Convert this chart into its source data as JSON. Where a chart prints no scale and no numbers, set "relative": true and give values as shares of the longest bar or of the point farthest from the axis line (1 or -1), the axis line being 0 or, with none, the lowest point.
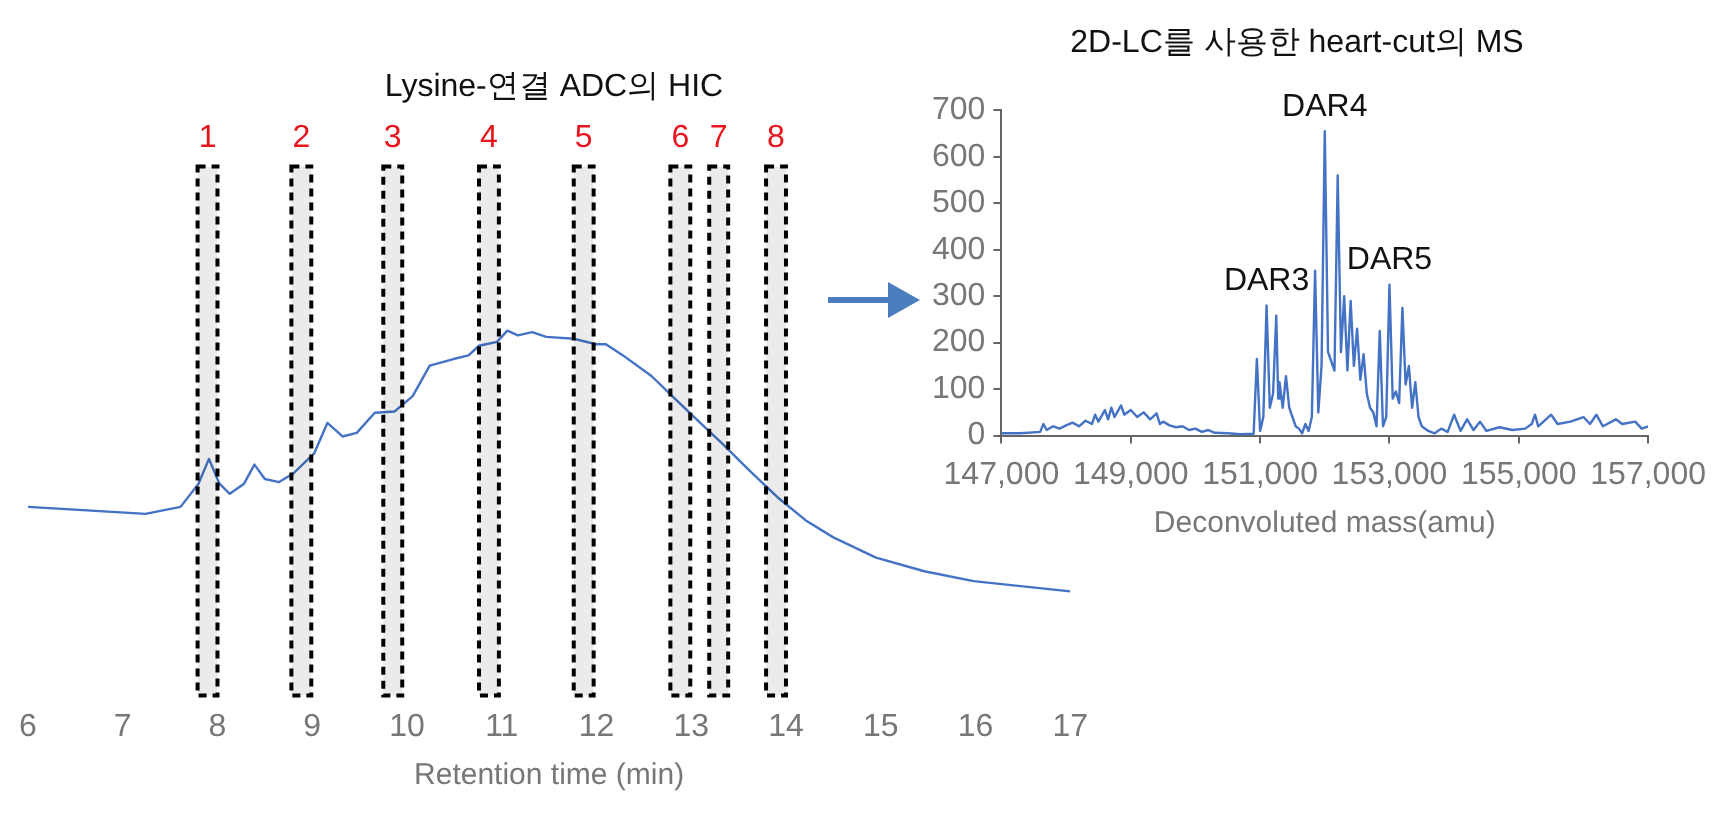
{
  "chart_data": [
    {
      "type": "line",
      "title": "Lysine-연결 ADC의 HIC",
      "xlabel": "Retention time (min)",
      "relative": true,
      "color": "#4472c4",
      "marker": "none",
      "x": [
        6,
        7.24,
        7.61,
        7.8,
        7.91,
        8.02,
        8.13,
        8.28,
        8.39,
        8.5,
        8.65,
        8.8,
        9.02,
        9.16,
        9.32,
        9.47,
        9.66,
        9.87,
        10.06,
        10.24,
        10.5,
        10.65,
        10.76,
        10.95,
        11.06,
        11.17,
        11.32,
        11.47,
        11.76,
        11.99,
        12.1,
        12.28,
        12.58,
        12.8,
        13.02,
        13.32,
        13.61,
        13.91,
        14.21,
        14.5,
        14.95,
        15.46,
        15.98,
        17
      ],
      "values": [
        0.324,
        0.297,
        0.324,
        0.413,
        0.508,
        0.413,
        0.374,
        0.413,
        0.486,
        0.431,
        0.419,
        0.452,
        0.529,
        0.646,
        0.594,
        0.608,
        0.685,
        0.69,
        0.749,
        0.866,
        0.892,
        0.905,
        0.942,
        0.957,
        1,
        0.982,
        0.994,
        0.976,
        0.969,
        0.948,
        0.948,
        0.905,
        0.826,
        0.749,
        0.672,
        0.569,
        0.465,
        0.361,
        0.272,
        0.207,
        0.129,
        0.077,
        0.039,
        0
      ],
      "xlim": [
        6,
        17
      ],
      "xticks": [
        6,
        7,
        8,
        9,
        10,
        11,
        12,
        13,
        14,
        15,
        16,
        17
      ],
      "bands": [
        {
          "axis": "x",
          "from": 7.79,
          "to": 8.0,
          "label": "1",
          "color": "#000000"
        },
        {
          "axis": "x",
          "from": 8.78,
          "to": 8.99,
          "label": "2",
          "color": "#000000"
        },
        {
          "axis": "x",
          "from": 9.75,
          "to": 9.95,
          "label": "3",
          "color": "#000000"
        },
        {
          "axis": "x",
          "from": 10.76,
          "to": 10.97,
          "label": "4",
          "color": "#000000"
        },
        {
          "axis": "x",
          "from": 11.76,
          "to": 11.97,
          "label": "5",
          "color": "#000000"
        },
        {
          "axis": "x",
          "from": 12.78,
          "to": 12.99,
          "label": "6",
          "color": "#000000"
        },
        {
          "axis": "x",
          "from": 13.19,
          "to": 13.39,
          "label": "7",
          "color": "#000000"
        },
        {
          "axis": "x",
          "from": 13.79,
          "to": 14.0,
          "label": "8",
          "color": "#000000"
        }
      ]
    },
    {
      "type": "line",
      "title": "2D-LC를 사용한 heart-cut의 MS",
      "xlabel": "Deconvoluted mass(amu)",
      "color": "#4472c4",
      "marker": "none",
      "x": [
        147000,
        147300,
        147600,
        147650,
        147700,
        147800,
        147900,
        148000,
        148100,
        148200,
        148300,
        148400,
        148450,
        148500,
        148600,
        148650,
        148700,
        148750,
        148850,
        148900,
        149000,
        149100,
        149200,
        149300,
        149400,
        149450,
        149500,
        149600,
        149700,
        149800,
        149900,
        150000,
        150100,
        150200,
        150300,
        150500,
        150700,
        150900,
        150950,
        151000,
        151050,
        151100,
        151150,
        151200,
        151250,
        151280,
        151300,
        151350,
        151400,
        151450,
        151500,
        151550,
        151600,
        151650,
        151700,
        151750,
        151800,
        151850,
        151900,
        151950,
        152000,
        152050,
        152100,
        152150,
        152200,
        152250,
        152300,
        152350,
        152400,
        152450,
        152500,
        152550,
        152600,
        152650,
        152700,
        152750,
        152800,
        152850,
        152900,
        152950,
        153000,
        153050,
        153100,
        153150,
        153200,
        153250,
        153300,
        153350,
        153400,
        153450,
        153500,
        153600,
        153700,
        153800,
        153900,
        154000,
        154100,
        154200,
        154300,
        154400,
        154500,
        154700,
        154900,
        155100,
        155200,
        155250,
        155300,
        155500,
        155600,
        155800,
        156000,
        156100,
        156200,
        156300,
        156500,
        156600,
        156800,
        156900,
        157000
      ],
      "values": [
        5,
        5,
        8,
        25,
        12,
        20,
        15,
        22,
        28,
        20,
        32,
        25,
        45,
        30,
        55,
        35,
        60,
        40,
        65,
        45,
        55,
        40,
        50,
        35,
        48,
        25,
        30,
        22,
        18,
        20,
        12,
        15,
        8,
        12,
        6,
        5,
        3,
        4,
        165,
        10,
        40,
        280,
        60,
        90,
        258,
        80,
        115,
        60,
        128,
        60,
        40,
        20,
        15,
        5,
        25,
        10,
        40,
        355,
        50,
        150,
        655,
        180,
        160,
        140,
        560,
        180,
        300,
        140,
        290,
        150,
        230,
        120,
        175,
        90,
        60,
        50,
        20,
        225,
        20,
        40,
        325,
        80,
        95,
        70,
        275,
        110,
        150,
        60,
        115,
        40,
        20,
        10,
        5,
        15,
        8,
        45,
        10,
        35,
        12,
        30,
        10,
        18,
        12,
        15,
        25,
        45,
        20,
        45,
        25,
        30,
        40,
        25,
        45,
        20,
        35,
        25,
        30,
        15,
        20
      ],
      "xlim": [
        147000,
        157000
      ],
      "xticks": [
        {
          "value": 147000,
          "label": "147,000"
        },
        {
          "value": 149000,
          "label": "149,000"
        },
        {
          "value": 151000,
          "label": "151,000"
        },
        {
          "value": 153000,
          "label": "153,000"
        },
        {
          "value": 155000,
          "label": "155,000"
        },
        {
          "value": 157000,
          "label": "157,000"
        }
      ],
      "ylim": [
        0,
        700
      ],
      "yticks": [
        0,
        100,
        200,
        300,
        400,
        500,
        600,
        700
      ],
      "annotations": [
        {
          "text": "DAR3",
          "x": 151100,
          "y": 280
        },
        {
          "text": "DAR4",
          "x": 152000,
          "y": 655
        },
        {
          "text": "DAR5",
          "x": 153000,
          "y": 325
        }
      ]
    }
  ]
}
